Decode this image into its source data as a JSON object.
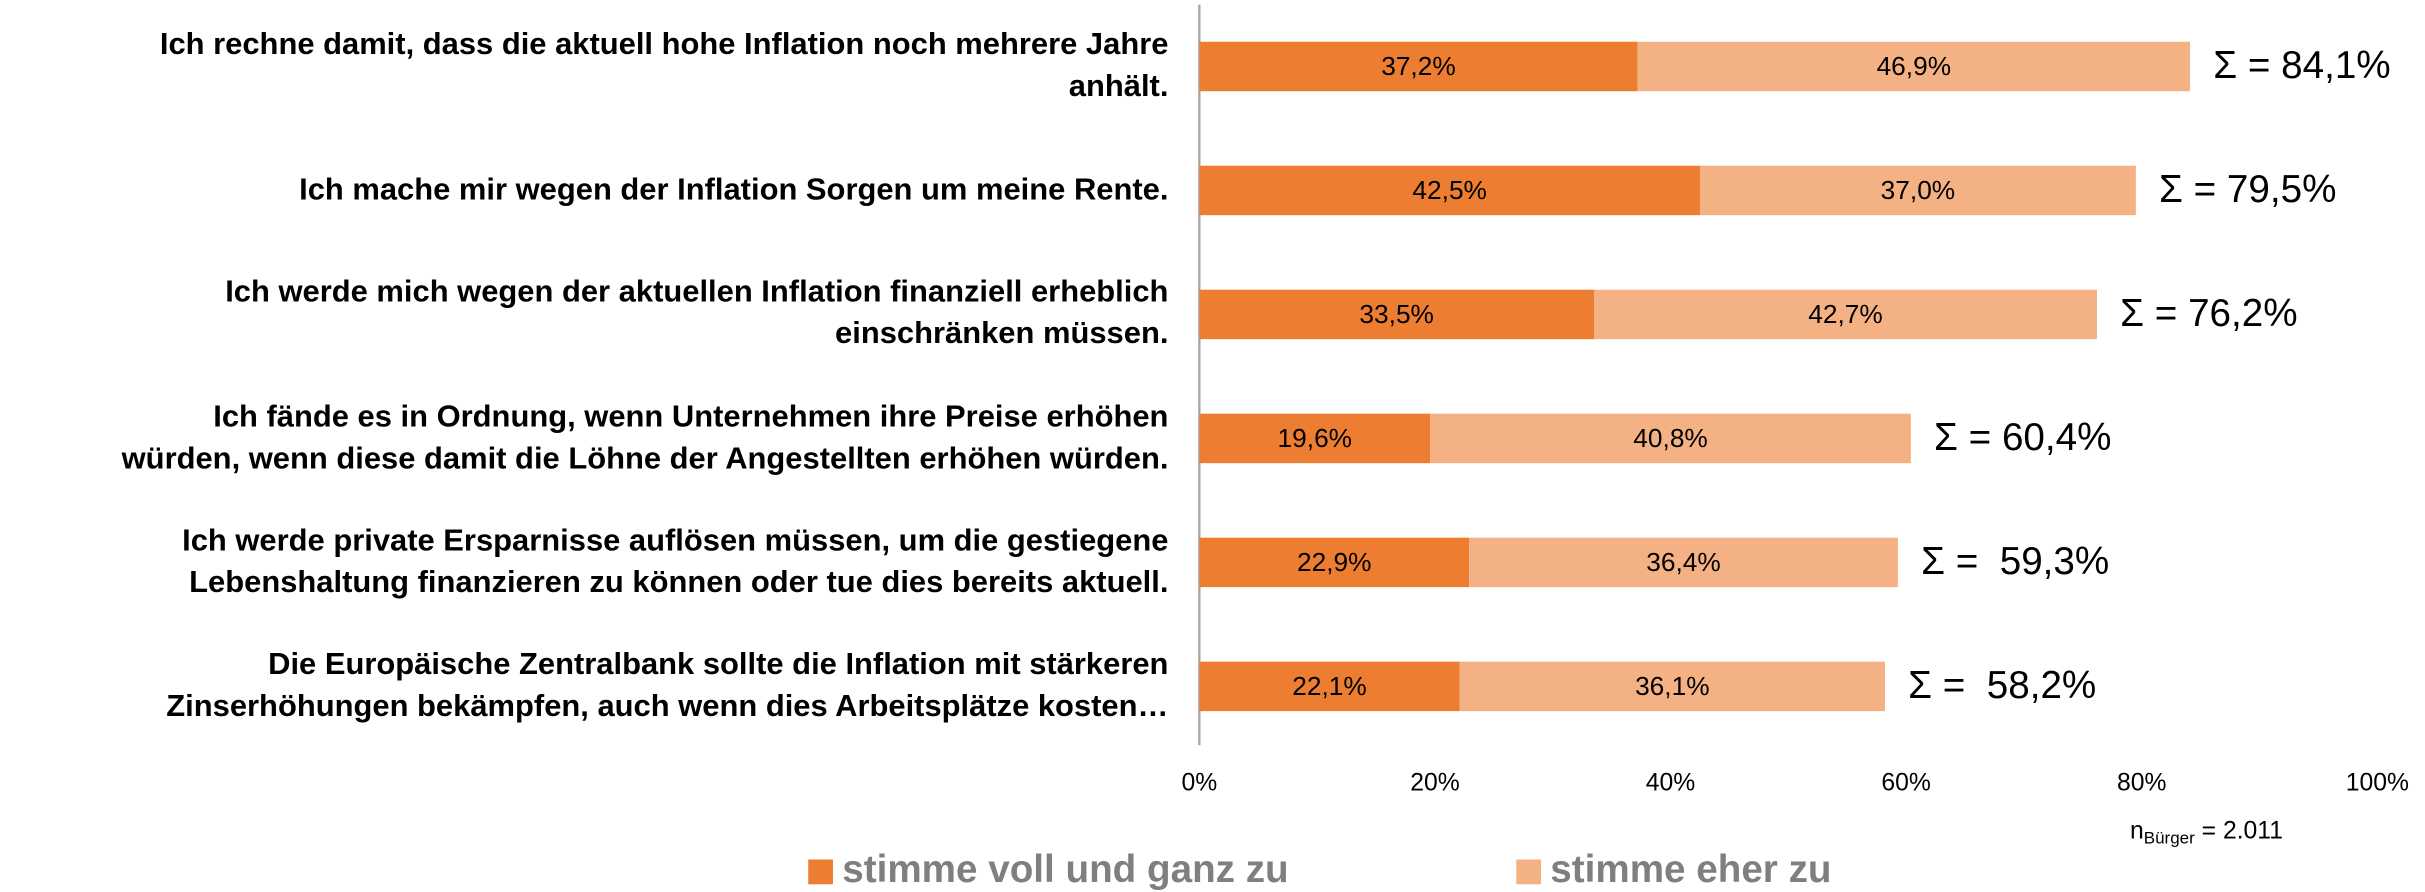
{
  "chart_data": {
    "type": "stacked_barh",
    "categories": [
      "Ich rechne damit, dass die aktuell hohe Inflation noch mehrere Jahre\nanhält.",
      "Ich mache mir wegen der Inflation Sorgen um meine Rente.",
      "Ich werde mich wegen der aktuellen Inflation finanziell erheblich\neinschränken müssen.",
      "Ich fände es in Ordnung, wenn Unternehmen ihre Preise erhöhen\nwürden, wenn diese damit die Löhne der Angestellten erhöhen würden.",
      "Ich werde private Ersparnisse auflösen müssen, um die gestiegene\nLebenshaltung finanzieren zu können oder tue dies bereits aktuell.",
      "Die Europäische Zentralbank sollte die Inflation mit stärkeren\nZinserhöhungen bekämpfen, auch wenn dies Arbeitsplätze kosten…"
    ],
    "series": [
      {
        "name": "stimme voll und ganz zu",
        "color": "#ed7d31",
        "values": [
          37.2,
          42.5,
          33.5,
          19.6,
          22.9,
          22.1
        ],
        "value_labels": [
          "37,2%",
          "42,5%",
          "33,5%",
          "19,6%",
          "22,9%",
          "22,1%"
        ]
      },
      {
        "name": "stimme eher zu",
        "color": "#f4b183",
        "values": [
          46.9,
          37.0,
          42.7,
          40.8,
          36.4,
          36.1
        ],
        "value_labels": [
          "46,9%",
          "37,0%",
          "42,7%",
          "40,8%",
          "36,4%",
          "36,1%"
        ]
      }
    ],
    "sum_labels": [
      "Σ = 84,1%",
      "Σ = 79,5%",
      "Σ = 76,2%",
      "Σ = 60,4%",
      "Σ =  59,3%",
      "Σ =  58,2%"
    ],
    "xlim": [
      0,
      100
    ],
    "xticks": [
      {
        "value": 0,
        "label": "0%"
      },
      {
        "value": 20,
        "label": "20%"
      },
      {
        "value": 40,
        "label": "40%"
      },
      {
        "value": 60,
        "label": "60%"
      },
      {
        "value": 80,
        "label": "80%"
      },
      {
        "value": 100,
        "label": "100%"
      }
    ],
    "note": {
      "main": "n",
      "sub": "Bürger",
      "rest": " = 2.011"
    },
    "legend": "bottom"
  }
}
